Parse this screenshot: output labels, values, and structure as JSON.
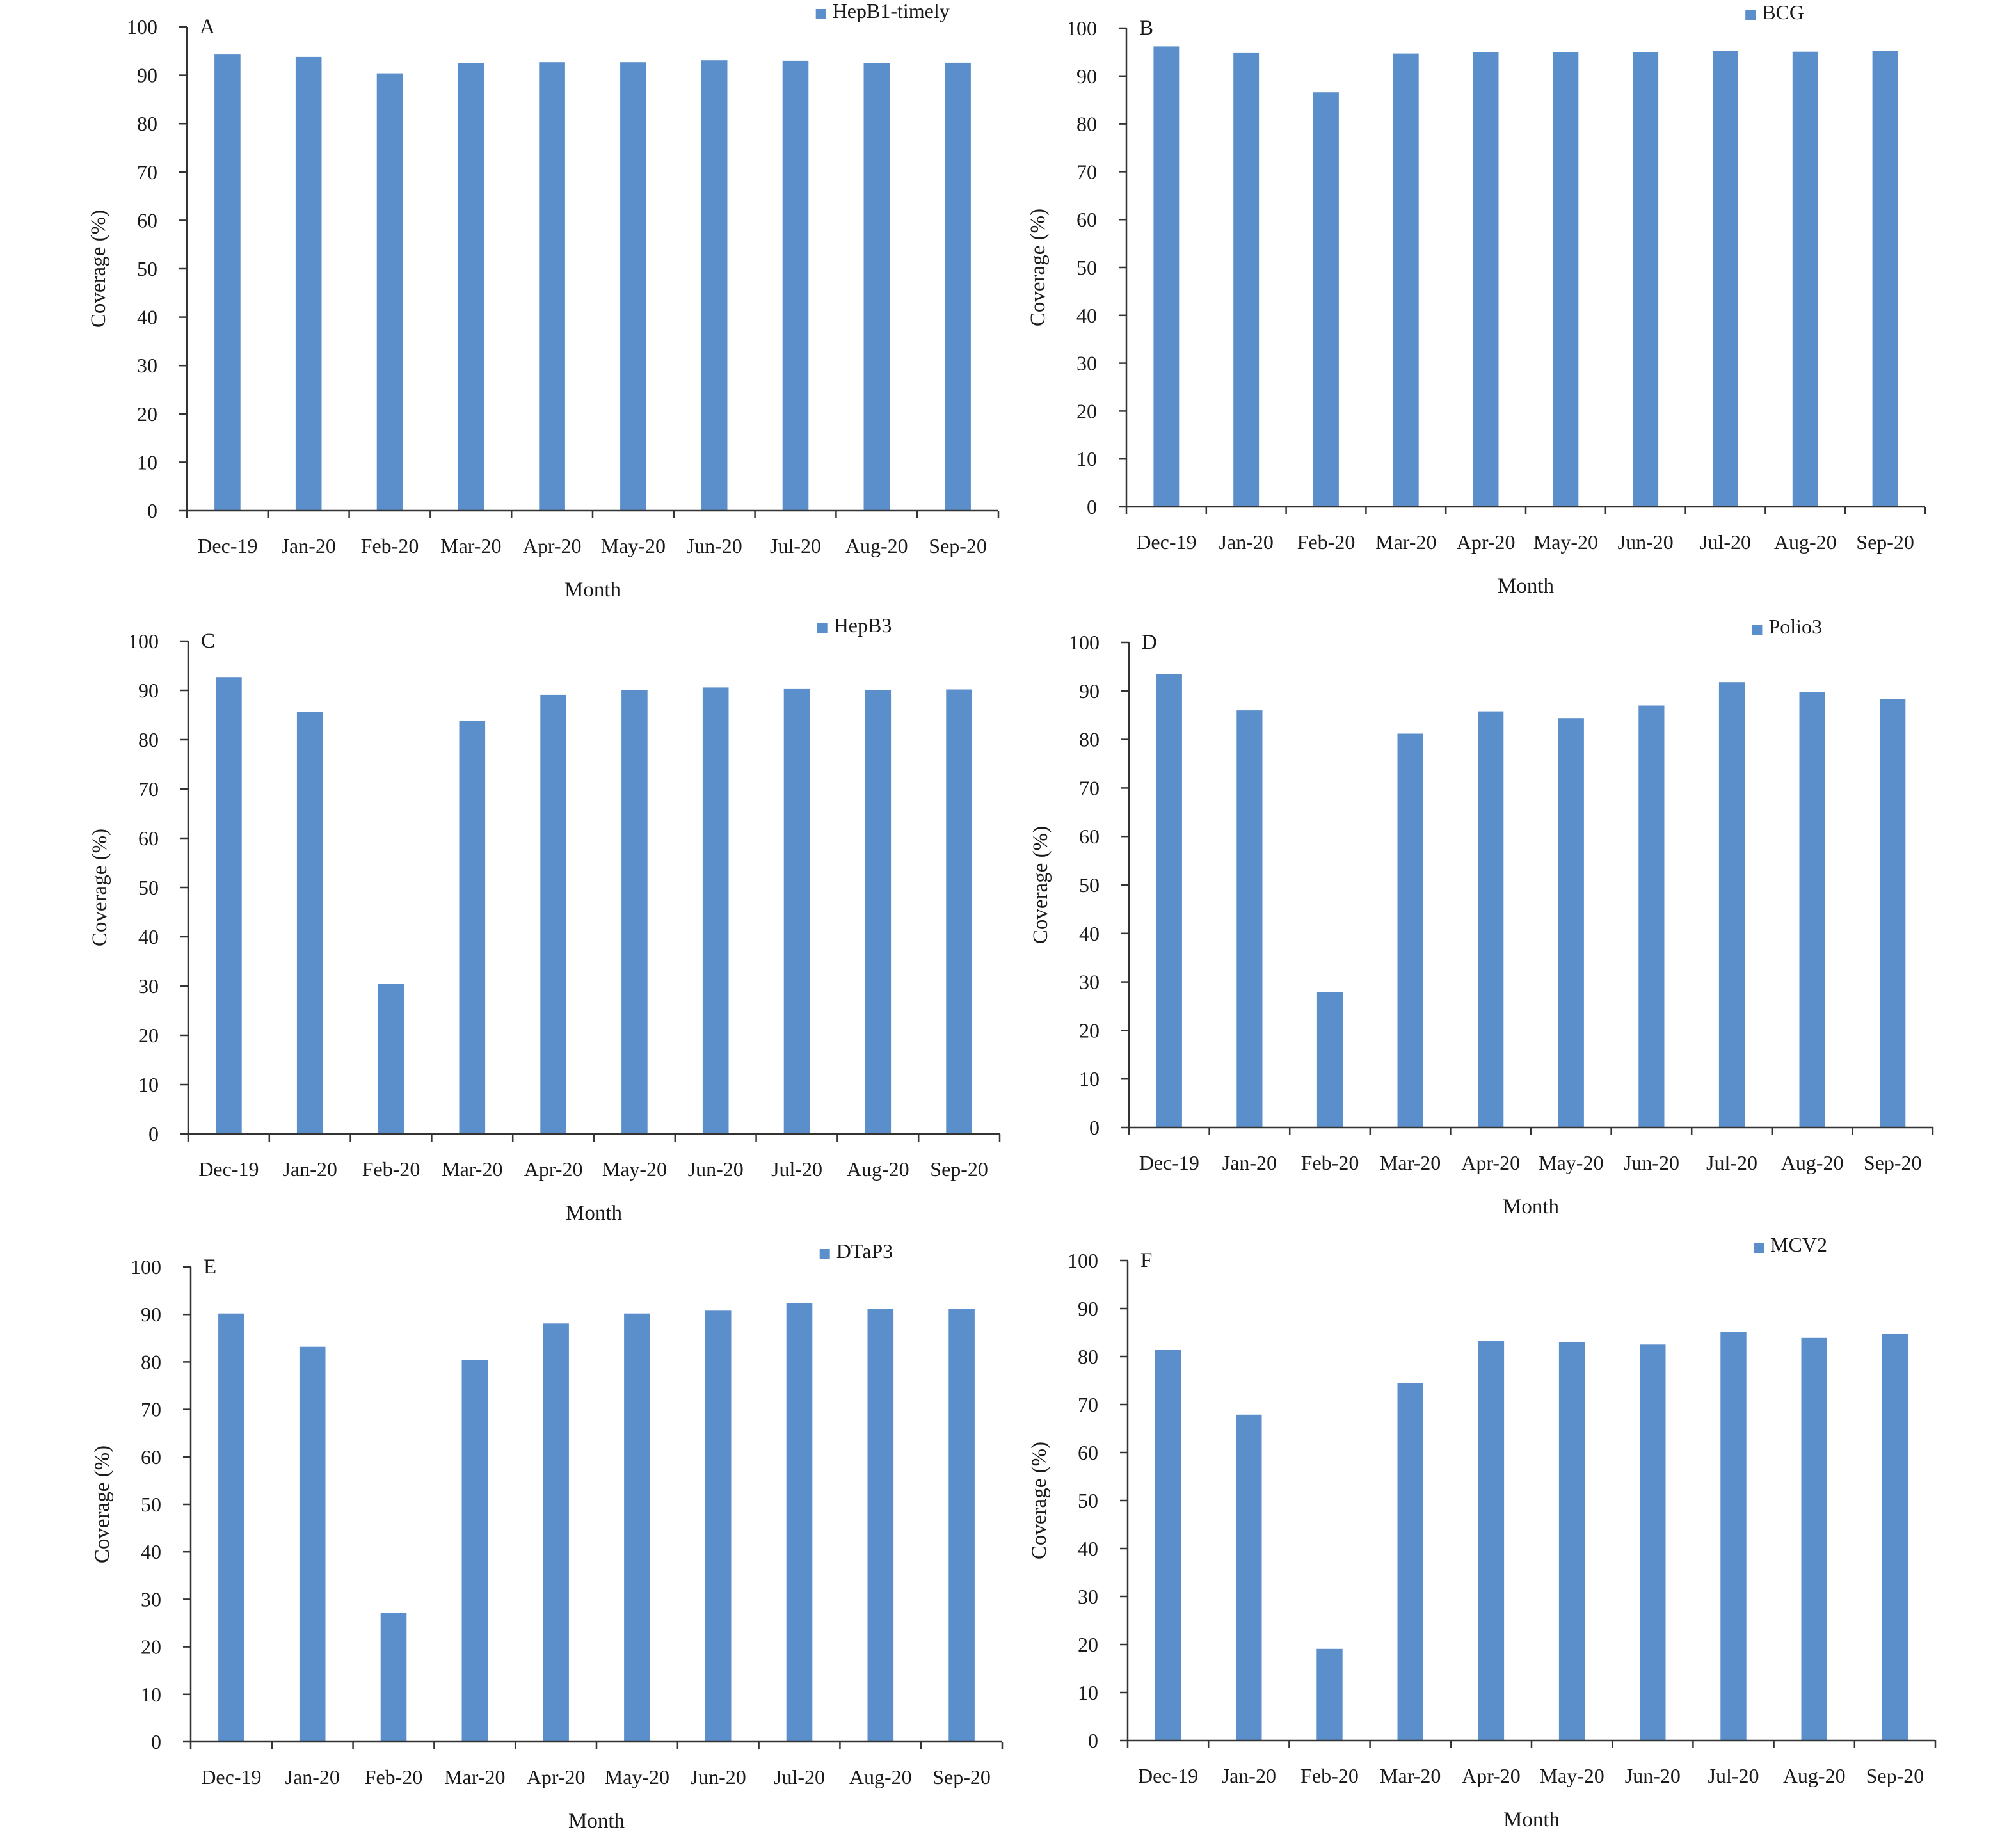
{
  "figure": {
    "colors": {
      "bar": "#5b8fcb",
      "axis": "#333333",
      "text": "#1a1a1a"
    }
  },
  "chart_data": [
    {
      "panel": "A",
      "type": "bar",
      "categories": [
        "Dec-19",
        "Jan-20",
        "Feb-20",
        "Mar-20",
        "Apr-20",
        "May-20",
        "Jun-20",
        "Jul-20",
        "Aug-20",
        "Sep-20"
      ],
      "series": [
        {
          "name": "HepB1-timely",
          "values": [
            94.3,
            93.8,
            90.4,
            92.5,
            92.7,
            92.7,
            93.1,
            93.0,
            92.5,
            92.6
          ]
        }
      ],
      "xlabel": "Month",
      "ylabel": "Coverage (%)",
      "ylim": [
        0,
        100
      ],
      "yticks": [
        0,
        10,
        20,
        30,
        40,
        50,
        60,
        70,
        80,
        90,
        100
      ],
      "grid": false,
      "legend_position": "top-right"
    },
    {
      "panel": "B",
      "type": "bar",
      "categories": [
        "Dec-19",
        "Jan-20",
        "Feb-20",
        "Mar-20",
        "Apr-20",
        "May-20",
        "Jun-20",
        "Jul-20",
        "Aug-20",
        "Sep-20"
      ],
      "series": [
        {
          "name": "BCG",
          "values": [
            96.2,
            94.8,
            86.6,
            94.7,
            95.0,
            95.0,
            95.0,
            95.2,
            95.1,
            95.2
          ]
        }
      ],
      "xlabel": "Month",
      "ylabel": "Coverage (%)",
      "ylim": [
        0,
        100
      ],
      "yticks": [
        0,
        10,
        20,
        30,
        40,
        50,
        60,
        70,
        80,
        90,
        100
      ],
      "grid": false,
      "legend_position": "top-right"
    },
    {
      "panel": "C",
      "type": "bar",
      "categories": [
        "Dec-19",
        "Jan-20",
        "Feb-20",
        "Mar-20",
        "Apr-20",
        "May-20",
        "Jun-20",
        "Jul-20",
        "Aug-20",
        "Sep-20"
      ],
      "series": [
        {
          "name": "HepB3",
          "values": [
            92.7,
            85.6,
            30.4,
            83.8,
            89.1,
            90.0,
            90.6,
            90.4,
            90.1,
            90.2
          ]
        }
      ],
      "xlabel": "Month",
      "ylabel": "Coverage (%)",
      "ylim": [
        0,
        100
      ],
      "yticks": [
        0,
        10,
        20,
        30,
        40,
        50,
        60,
        70,
        80,
        90,
        100
      ],
      "grid": false,
      "legend_position": "top-right"
    },
    {
      "panel": "D",
      "type": "bar",
      "categories": [
        "Dec-19",
        "Jan-20",
        "Feb-20",
        "Mar-20",
        "Apr-20",
        "May-20",
        "Jun-20",
        "Jul-20",
        "Aug-20",
        "Sep-20"
      ],
      "series": [
        {
          "name": "Polio3",
          "values": [
            93.4,
            86.0,
            27.9,
            81.2,
            85.8,
            84.4,
            87.0,
            91.8,
            89.8,
            88.3
          ]
        }
      ],
      "xlabel": "Month",
      "ylabel": "Coverage (%)",
      "ylim": [
        0,
        100
      ],
      "yticks": [
        0,
        10,
        20,
        30,
        40,
        50,
        60,
        70,
        80,
        90,
        100
      ],
      "grid": false,
      "legend_position": "top-right"
    },
    {
      "panel": "E",
      "type": "bar",
      "categories": [
        "Dec-19",
        "Jan-20",
        "Feb-20",
        "Mar-20",
        "Apr-20",
        "May-20",
        "Jun-20",
        "Jul-20",
        "Aug-20",
        "Sep-20"
      ],
      "series": [
        {
          "name": "DTaP3",
          "values": [
            90.2,
            83.2,
            27.2,
            80.4,
            88.1,
            90.2,
            90.8,
            92.4,
            91.1,
            91.2
          ]
        }
      ],
      "xlabel": "Month",
      "ylabel": "Coverage (%)",
      "ylim": [
        0,
        100
      ],
      "yticks": [
        0,
        10,
        20,
        30,
        40,
        50,
        60,
        70,
        80,
        90,
        100
      ],
      "grid": false,
      "legend_position": "top-right"
    },
    {
      "panel": "F",
      "type": "bar",
      "categories": [
        "Dec-19",
        "Jan-20",
        "Feb-20",
        "Mar-20",
        "Apr-20",
        "May-20",
        "Jun-20",
        "Jul-20",
        "Aug-20",
        "Sep-20"
      ],
      "series": [
        {
          "name": "MCV2",
          "values": [
            81.4,
            67.9,
            19.1,
            74.4,
            83.2,
            83.0,
            82.5,
            85.1,
            83.9,
            84.8
          ]
        }
      ],
      "xlabel": "Month",
      "ylabel": "Coverage (%)",
      "ylim": [
        0,
        100
      ],
      "yticks": [
        0,
        10,
        20,
        30,
        40,
        50,
        60,
        70,
        80,
        90,
        100
      ],
      "grid": false,
      "legend_position": "top-right"
    }
  ]
}
